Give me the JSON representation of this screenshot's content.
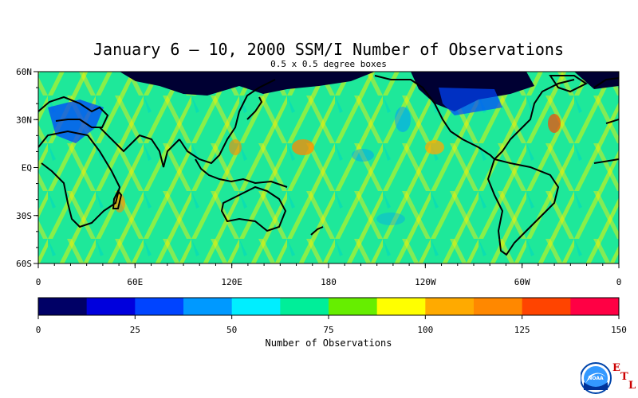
{
  "map": {
    "title": "January 6 – 10, 2000 SSM/I Number of Observations",
    "subtitle": "0.5 x 0.5 degree boxes",
    "projection": "equirectangular",
    "lon_range": [
      0,
      360
    ],
    "lat_range": [
      -60,
      60
    ],
    "lat_labels": [
      "60N",
      "30N",
      "EQ",
      "30S",
      "60S"
    ],
    "lat_values": [
      60,
      30,
      0,
      -30,
      -60
    ],
    "lon_labels": [
      "0",
      "60E",
      "120E",
      "180",
      "120W",
      "60W",
      "0"
    ],
    "lon_values": [
      0,
      60,
      120,
      180,
      240,
      300,
      360
    ],
    "background_color": "#1ee89a",
    "land_no_data_color": "#000033",
    "coastline_color": "#000000"
  },
  "colorbar": {
    "title": "Number of Observations",
    "min": 0,
    "max": 150,
    "tick_labels": [
      "0",
      "25",
      "50",
      "75",
      "100",
      "125",
      "150"
    ],
    "tick_values": [
      0,
      25,
      50,
      75,
      100,
      125,
      150
    ],
    "colors": [
      "#000066",
      "#0000dd",
      "#0044ff",
      "#0099ff",
      "#00eeff",
      "#00ee99",
      "#66ee00",
      "#ffff00",
      "#ffaa00",
      "#ff8800",
      "#ff4400",
      "#ff0044"
    ]
  },
  "logo": {
    "org_text": "NOAA",
    "lab_letters": [
      "E",
      "T",
      "L"
    ]
  }
}
